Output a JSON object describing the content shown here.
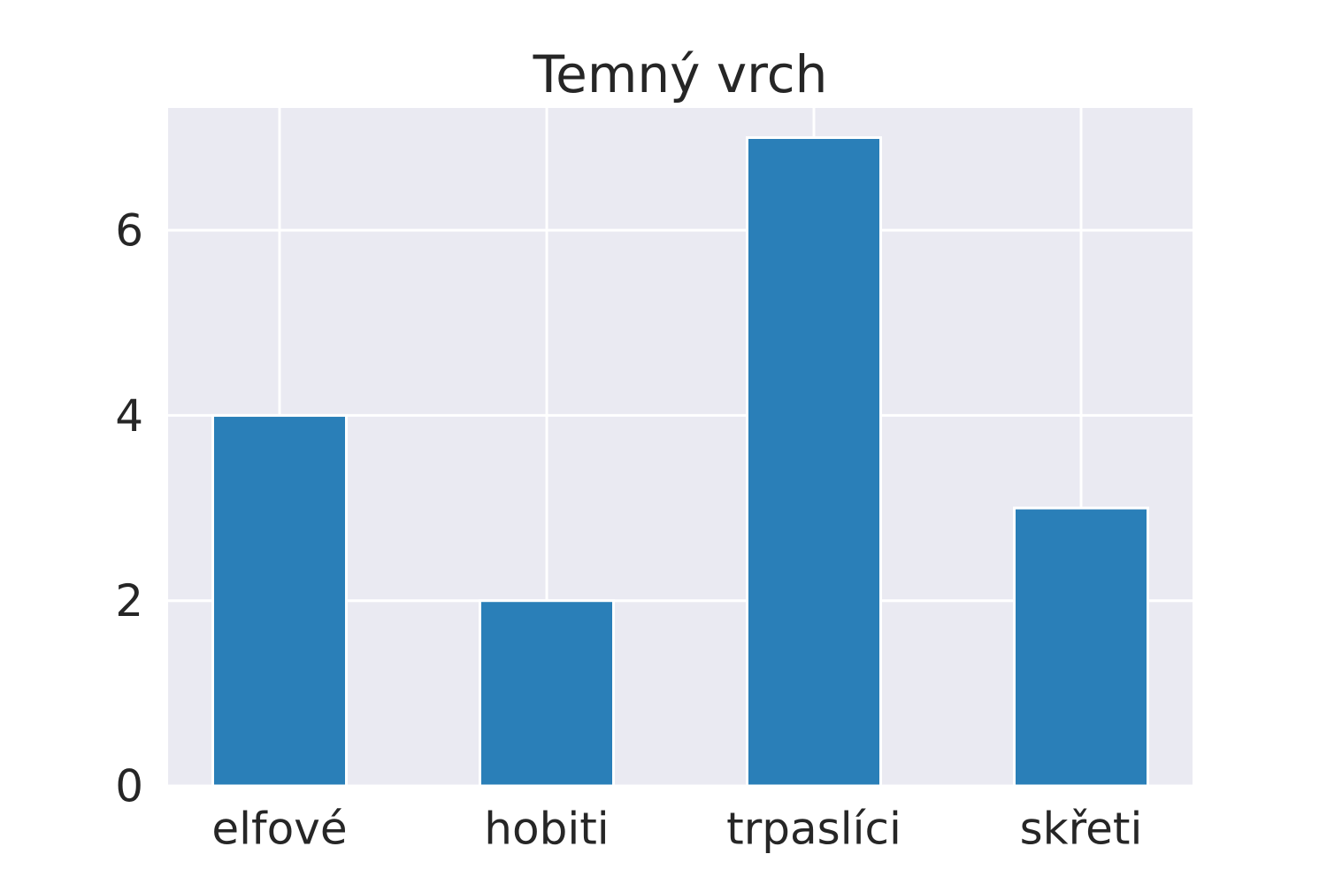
{
  "chart_data": {
    "type": "bar",
    "title": "Temný vrch",
    "categories": [
      "elfové",
      "hobiti",
      "trpaslíci",
      "skřeti"
    ],
    "values": [
      4,
      2,
      7,
      3
    ],
    "color": "#2a7fb8",
    "ylim": [
      0,
      7.32
    ],
    "yticks": [
      0,
      2,
      4,
      6
    ],
    "grid": true
  }
}
